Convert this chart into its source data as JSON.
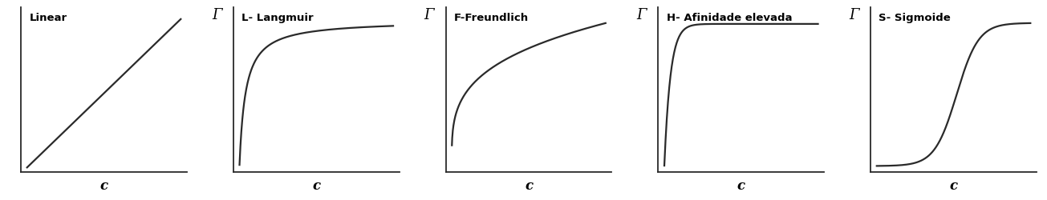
{
  "panels": [
    {
      "title": "Linear",
      "ylabel": "",
      "xlabel": "c",
      "curve_type": "linear",
      "show_ylabel": false
    },
    {
      "title": "L- Langmuir",
      "ylabel": "Γ",
      "xlabel": "c",
      "curve_type": "langmuir",
      "show_ylabel": true
    },
    {
      "title": "F-Freundlich",
      "ylabel": "Γ",
      "xlabel": "c",
      "curve_type": "freundlich",
      "show_ylabel": true
    },
    {
      "title": "H- Afinidade elevada",
      "ylabel": "Γ",
      "xlabel": "c",
      "curve_type": "high_affinity",
      "show_ylabel": true
    },
    {
      "title": "S- Sigmoide",
      "ylabel": "Γ",
      "xlabel": "c",
      "curve_type": "sigmoide",
      "show_ylabel": true
    }
  ],
  "background_color": "#ffffff",
  "line_color": "#2a2a2a",
  "line_width": 1.6,
  "title_fontsize": 9.5,
  "label_fontsize": 11,
  "axis_label_fontsize": 11
}
